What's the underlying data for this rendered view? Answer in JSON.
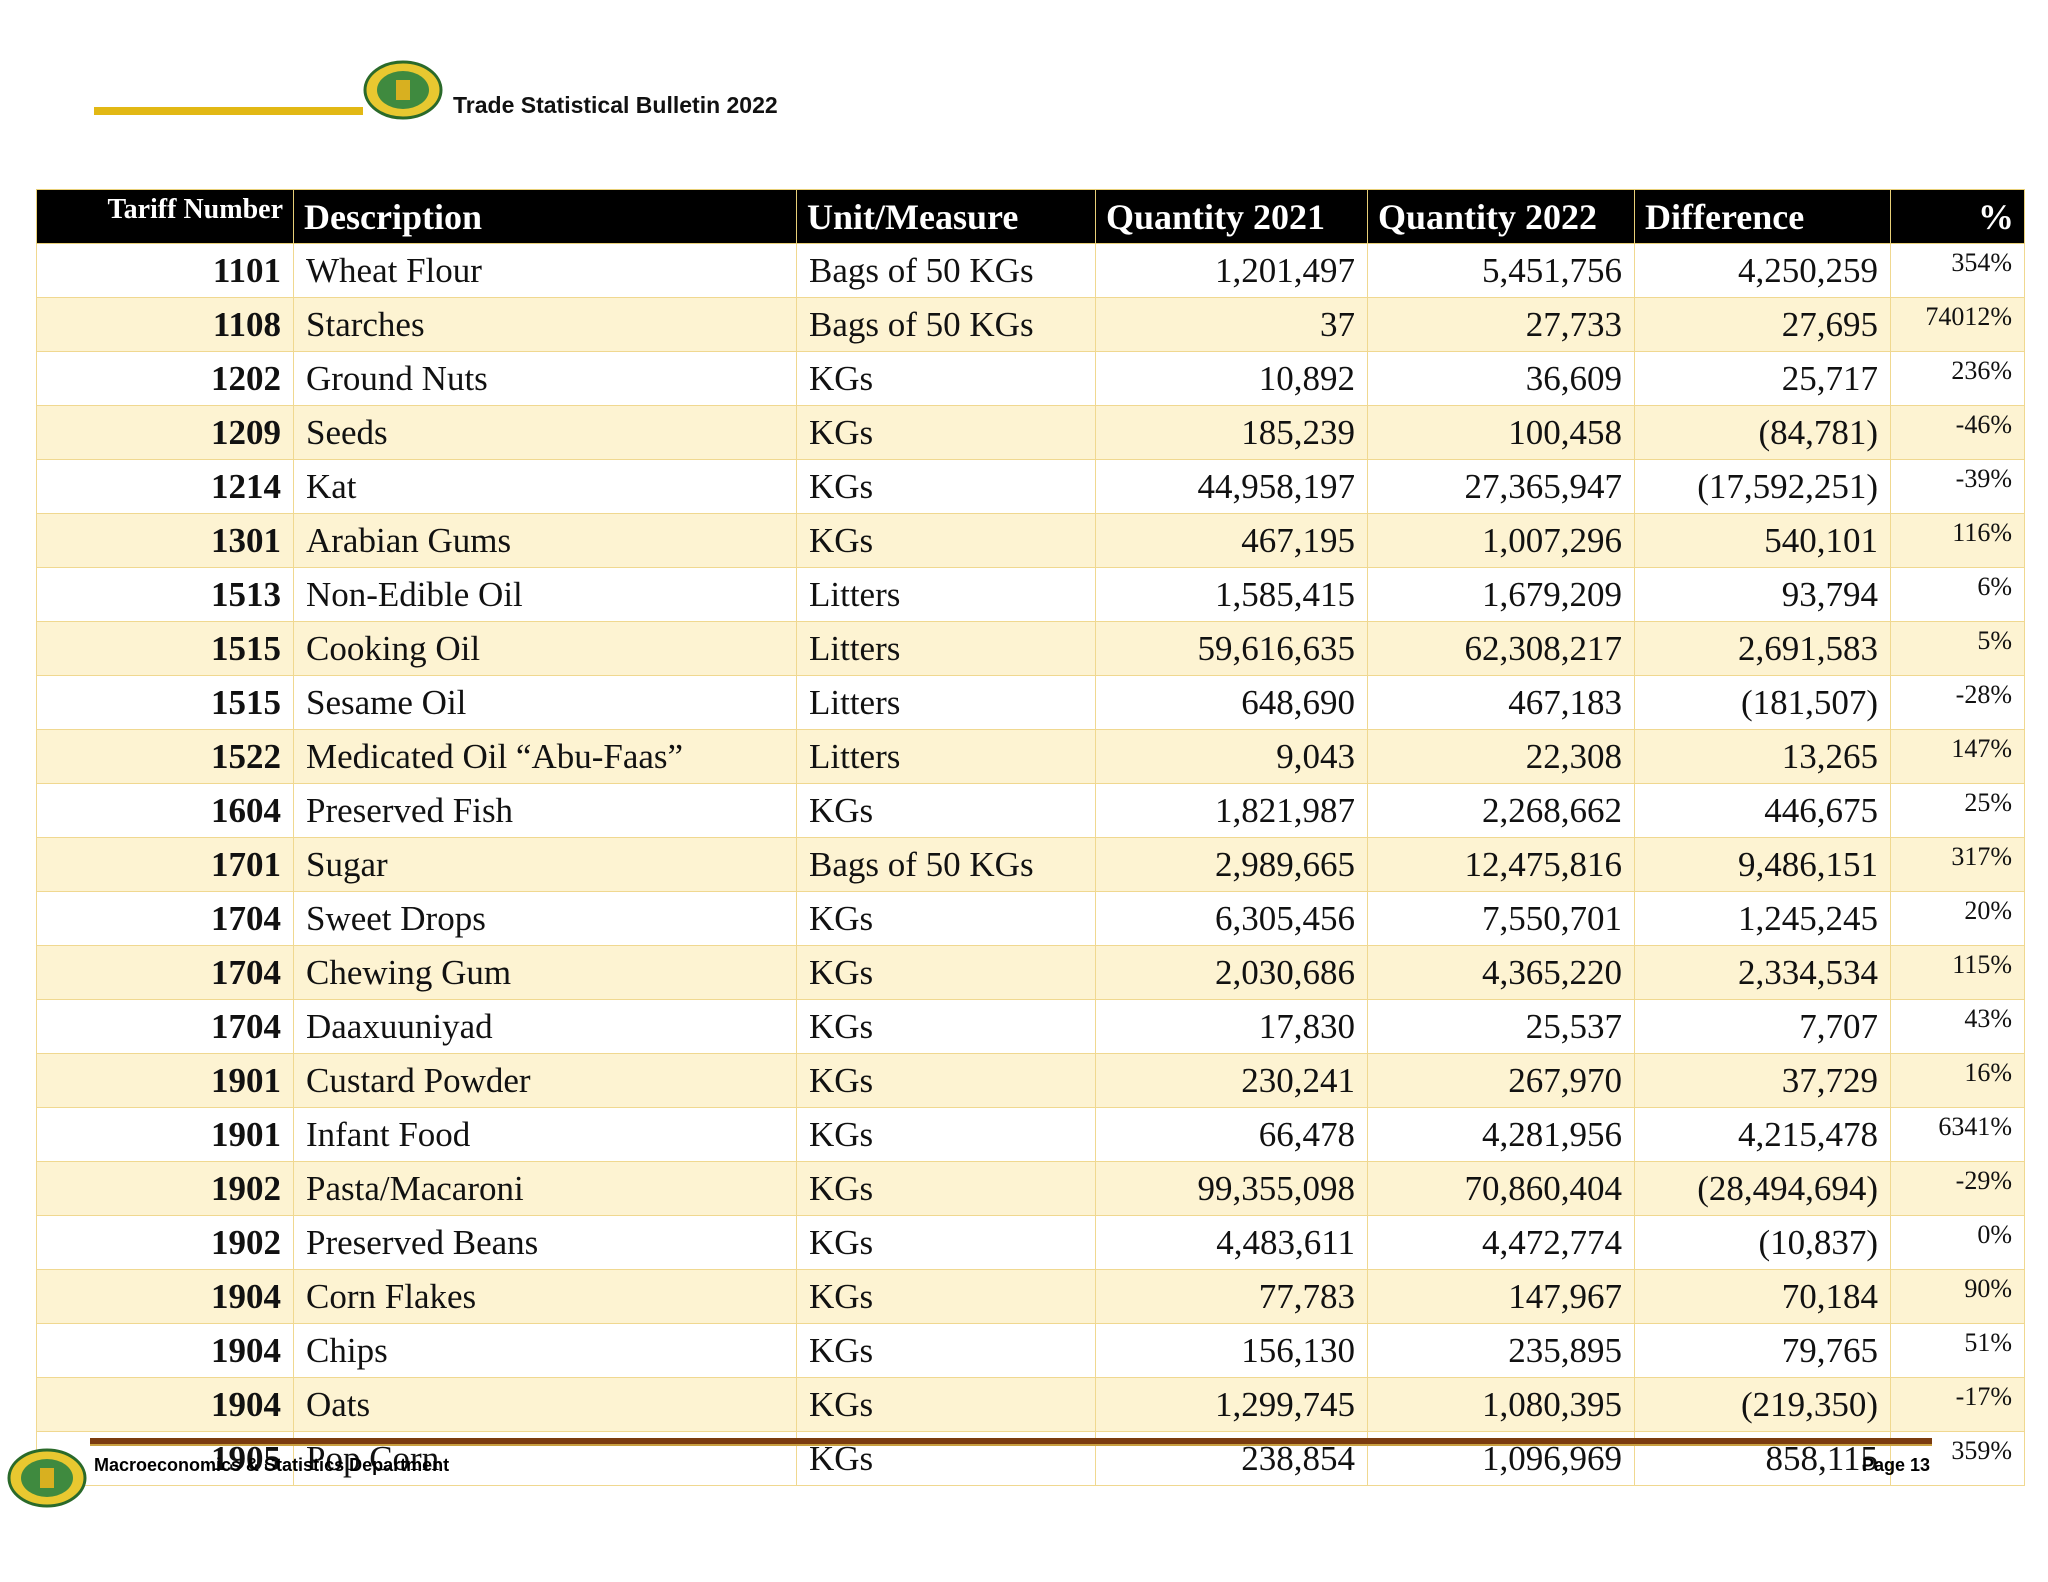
{
  "header": {
    "title": "Trade Statistical Bulletin 2022"
  },
  "table": {
    "columns": [
      "Tariff Number",
      "Description",
      "Unit/Measure",
      "Quantity 2021",
      "Quantity 2022",
      "Difference",
      "%"
    ],
    "rows": [
      [
        "1101",
        "Wheat Flour",
        "Bags of 50 KGs",
        "1,201,497",
        "5,451,756",
        "4,250,259",
        "354%"
      ],
      [
        "1108",
        "Starches",
        "Bags of 50 KGs",
        "37",
        "27,733",
        "27,695",
        "74012%"
      ],
      [
        "1202",
        "Ground Nuts",
        "KGs",
        "10,892",
        "36,609",
        "25,717",
        "236%"
      ],
      [
        "1209",
        "Seeds",
        "KGs",
        "185,239",
        "100,458",
        "(84,781)",
        "-46%"
      ],
      [
        "1214",
        "Kat",
        "KGs",
        "44,958,197",
        "27,365,947",
        "(17,592,251)",
        "-39%"
      ],
      [
        "1301",
        "Arabian Gums",
        "KGs",
        "467,195",
        "1,007,296",
        "540,101",
        "116%"
      ],
      [
        "1513",
        "Non-Edible Oil",
        "Litters",
        "1,585,415",
        "1,679,209",
        "93,794",
        "6%"
      ],
      [
        "1515",
        "Cooking Oil",
        "Litters",
        "59,616,635",
        "62,308,217",
        "2,691,583",
        "5%"
      ],
      [
        "1515",
        "Sesame Oil",
        "Litters",
        "648,690",
        "467,183",
        "(181,507)",
        "-28%"
      ],
      [
        "1522",
        "Medicated Oil “Abu-Faas”",
        "Litters",
        "9,043",
        "22,308",
        "13,265",
        "147%"
      ],
      [
        "1604",
        "Preserved Fish",
        "KGs",
        "1,821,987",
        "2,268,662",
        "446,675",
        "25%"
      ],
      [
        "1701",
        "Sugar",
        "Bags of 50 KGs",
        "2,989,665",
        "12,475,816",
        "9,486,151",
        "317%"
      ],
      [
        "1704",
        "Sweet Drops",
        "KGs",
        "6,305,456",
        "7,550,701",
        "1,245,245",
        "20%"
      ],
      [
        "1704",
        "Chewing Gum",
        "KGs",
        "2,030,686",
        "4,365,220",
        "2,334,534",
        "115%"
      ],
      [
        "1704",
        "Daaxuuniyad",
        "KGs",
        "17,830",
        "25,537",
        "7,707",
        "43%"
      ],
      [
        "1901",
        "Custard Powder",
        "KGs",
        "230,241",
        "267,970",
        "37,729",
        "16%"
      ],
      [
        "1901",
        "Infant Food",
        "KGs",
        "66,478",
        "4,281,956",
        "4,215,478",
        "6341%"
      ],
      [
        "1902",
        "Pasta/Macaroni",
        "KGs",
        "99,355,098",
        "70,860,404",
        "(28,494,694)",
        "-29%"
      ],
      [
        "1902",
        "Preserved Beans",
        "KGs",
        "4,483,611",
        "4,472,774",
        "(10,837)",
        "0%"
      ],
      [
        "1904",
        "Corn Flakes",
        "KGs",
        "77,783",
        "147,967",
        "70,184",
        "90%"
      ],
      [
        "1904",
        "Chips",
        "KGs",
        "156,130",
        "235,895",
        "79,765",
        "51%"
      ],
      [
        "1904",
        "Oats",
        "KGs",
        "1,299,745",
        "1,080,395",
        "(219,350)",
        "-17%"
      ],
      [
        "1905",
        "Pop Corn",
        "KGs",
        "238,854",
        "1,096,969",
        "858,115",
        "359%"
      ]
    ]
  },
  "footer": {
    "department": "Macroeconomics & Statistics Department",
    "page": "Page 13"
  }
}
